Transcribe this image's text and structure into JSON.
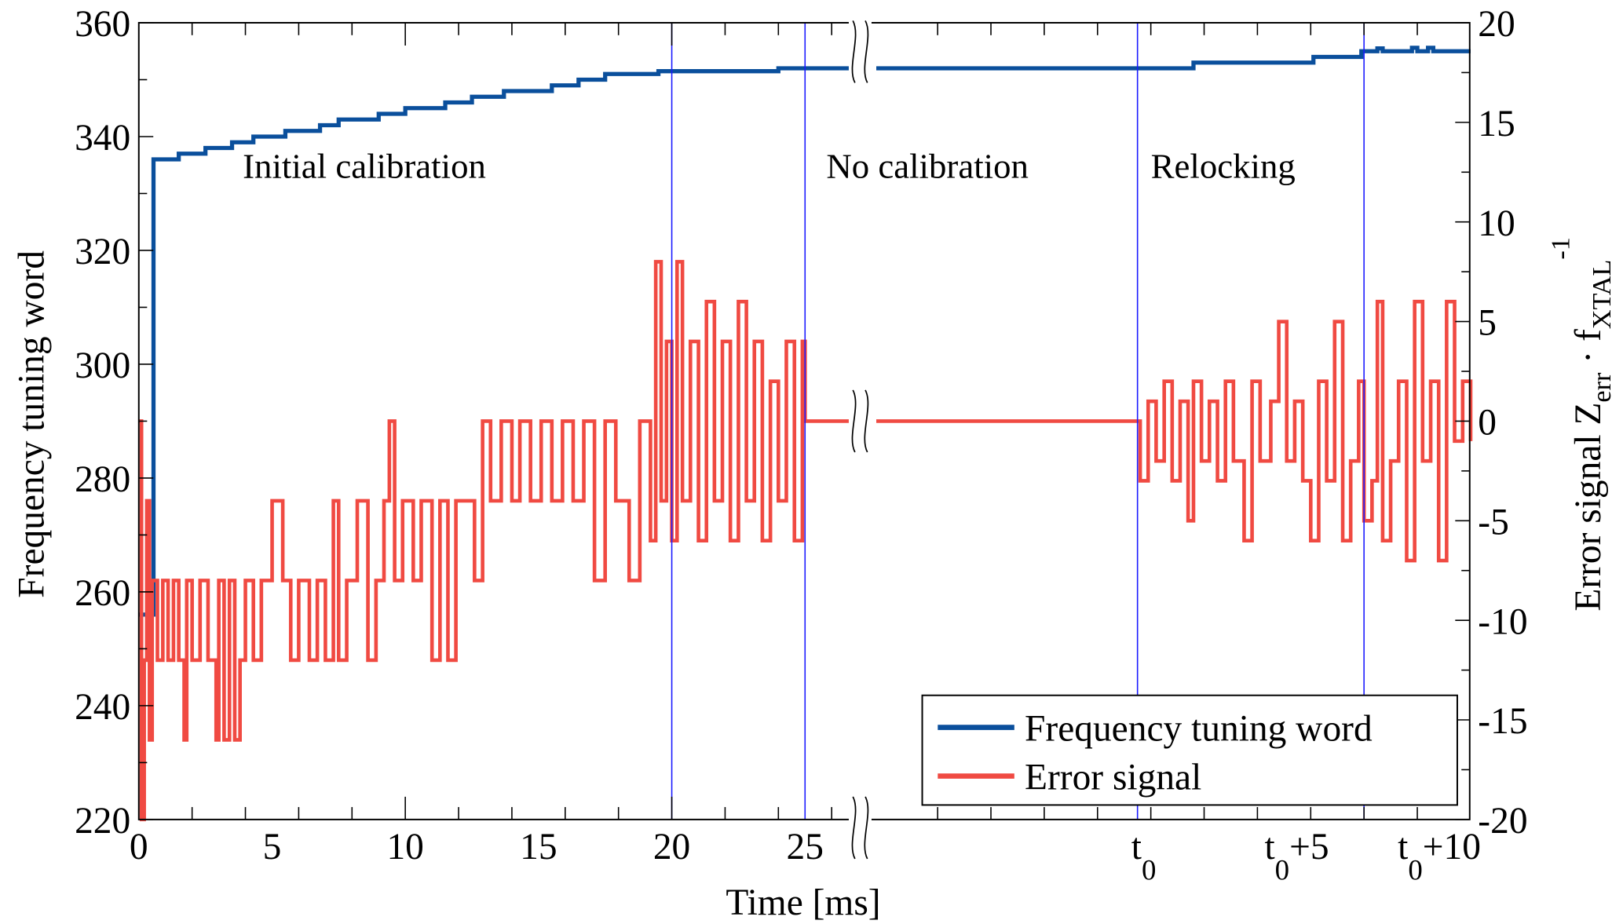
{
  "chart_data": {
    "type": "line",
    "xlabel": "Time [ms]",
    "ylabel_left": "Frequency tuning word",
    "ylabel_right_parts": [
      "Error signal Z",
      "err",
      " · f",
      "XTAL",
      "-1"
    ],
    "ylim_left": [
      220,
      360
    ],
    "ylim_right": [
      -20,
      20
    ],
    "yticks_left": [
      "220",
      "240",
      "260",
      "280",
      "300",
      "320",
      "340",
      "360"
    ],
    "yticks_right": [
      "-20",
      "-15",
      "-10",
      "-5",
      "0",
      "5",
      "10",
      "15",
      "20"
    ],
    "x_segments": [
      {
        "range": [
          0,
          27
        ],
        "tick_labels": [
          {
            "t": 0,
            "label": "0"
          },
          {
            "t": 5,
            "label": "5"
          },
          {
            "t": 10,
            "label": "10"
          },
          {
            "t": 15,
            "label": "15"
          },
          {
            "t": 20,
            "label": "20"
          },
          {
            "t": 25,
            "label": "25"
          }
        ]
      },
      {
        "range": [
          -9.8,
          12.5
        ],
        "reference": "t0",
        "tick_labels": [
          {
            "t": 0,
            "base": "t",
            "sub": "0",
            "suffix": ""
          },
          {
            "t": 5,
            "base": "t",
            "sub": "0",
            "suffix": "+5"
          },
          {
            "t": 10,
            "base": "t",
            "sub": "0",
            "suffix": "+10"
          }
        ]
      }
    ],
    "axis_break": "between segments",
    "grid": false,
    "legend": "bottom-right",
    "vertical_markers": [
      {
        "segment": 0,
        "t": 20
      },
      {
        "segment": 0,
        "t": 25
      },
      {
        "segment": 1,
        "t": 0
      },
      {
        "segment": 1,
        "t": 8.5
      }
    ],
    "marker_color": "#1a1aff",
    "annotations": [
      {
        "text": "Initial calibration",
        "segment": 0,
        "t": 3.9
      },
      {
        "text": "No calibration",
        "segment": 0,
        "t": 25.8
      },
      {
        "text": "Relocking",
        "segment": 1,
        "t": 0.5
      }
    ],
    "series": [
      {
        "name": "Frequency tuning word",
        "axis": "left",
        "color": "#0a4f9c",
        "segments": [
          [
            [
              0,
              256
            ],
            [
              0.45,
              256
            ],
            [
              0.55,
              336
            ],
            [
              1.5,
              337
            ],
            [
              2.5,
              338
            ],
            [
              3.5,
              339
            ],
            [
              4.3,
              340
            ],
            [
              5.5,
              341
            ],
            [
              6.8,
              342
            ],
            [
              7.5,
              343
            ],
            [
              9,
              344
            ],
            [
              10,
              345
            ],
            [
              11.5,
              346
            ],
            [
              12.5,
              347
            ],
            [
              13.7,
              348
            ],
            [
              15.5,
              349
            ],
            [
              16.5,
              350
            ],
            [
              17.5,
              351
            ],
            [
              19.5,
              351.5
            ],
            [
              24,
              352
            ],
            [
              27,
              352
            ]
          ],
          [
            [
              -9.8,
              352
            ],
            [
              2,
              352
            ],
            [
              2.1,
              353
            ],
            [
              6.5,
              353
            ],
            [
              6.6,
              354
            ],
            [
              8.3,
              354
            ],
            [
              8.4,
              355
            ],
            [
              9,
              355.5
            ],
            [
              9.2,
              355
            ],
            [
              10.3,
              355.6
            ],
            [
              10.5,
              355
            ],
            [
              10.9,
              355.6
            ],
            [
              11.1,
              355
            ],
            [
              12.5,
              355
            ]
          ]
        ]
      },
      {
        "name": "Error signal",
        "axis": "right",
        "color": "#f04a42",
        "segments": [
          [
            [
              0,
              0
            ],
            [
              0.1,
              -20
            ],
            [
              0.2,
              -12
            ],
            [
              0.3,
              -4
            ],
            [
              0.4,
              -16
            ],
            [
              0.5,
              -8
            ],
            [
              0.7,
              -12
            ],
            [
              0.9,
              -8
            ],
            [
              1.1,
              -12
            ],
            [
              1.3,
              -8
            ],
            [
              1.5,
              -12
            ],
            [
              1.7,
              -16
            ],
            [
              1.8,
              -8
            ],
            [
              2.0,
              -12
            ],
            [
              2.3,
              -8
            ],
            [
              2.6,
              -12
            ],
            [
              2.9,
              -16
            ],
            [
              3.0,
              -8
            ],
            [
              3.2,
              -16
            ],
            [
              3.4,
              -8
            ],
            [
              3.6,
              -16
            ],
            [
              3.8,
              -12
            ],
            [
              4.0,
              -8
            ],
            [
              4.3,
              -12
            ],
            [
              4.6,
              -8
            ],
            [
              5.0,
              -4
            ],
            [
              5.4,
              -8
            ],
            [
              5.7,
              -12
            ],
            [
              6.0,
              -8
            ],
            [
              6.4,
              -12
            ],
            [
              6.7,
              -8
            ],
            [
              7.0,
              -12
            ],
            [
              7.3,
              -4
            ],
            [
              7.5,
              -12
            ],
            [
              7.8,
              -8
            ],
            [
              8.2,
              -4
            ],
            [
              8.6,
              -12
            ],
            [
              8.9,
              -8
            ],
            [
              9.2,
              -4
            ],
            [
              9.4,
              0
            ],
            [
              9.6,
              -8
            ],
            [
              9.9,
              -4
            ],
            [
              10.3,
              -8
            ],
            [
              10.6,
              -4
            ],
            [
              11.0,
              -12
            ],
            [
              11.3,
              -4
            ],
            [
              11.6,
              -12
            ],
            [
              11.9,
              -4
            ],
            [
              12.3,
              -4
            ],
            [
              12.6,
              -8
            ],
            [
              12.9,
              0
            ],
            [
              13.2,
              -4
            ],
            [
              13.6,
              0
            ],
            [
              14.0,
              -4
            ],
            [
              14.3,
              0
            ],
            [
              14.7,
              -4
            ],
            [
              15.1,
              0
            ],
            [
              15.5,
              -4
            ],
            [
              15.9,
              0
            ],
            [
              16.3,
              -4
            ],
            [
              16.7,
              0
            ],
            [
              17.1,
              -8
            ],
            [
              17.5,
              0
            ],
            [
              17.9,
              -4
            ],
            [
              18.4,
              -8
            ],
            [
              18.8,
              0
            ],
            [
              19.2,
              -6
            ],
            [
              19.4,
              8
            ],
            [
              19.6,
              -4
            ],
            [
              19.8,
              4
            ],
            [
              20.0,
              -6
            ],
            [
              20.2,
              8
            ],
            [
              20.4,
              -4
            ],
            [
              20.7,
              4
            ],
            [
              21.0,
              -6
            ],
            [
              21.3,
              6
            ],
            [
              21.6,
              -4
            ],
            [
              21.9,
              4
            ],
            [
              22.2,
              -6
            ],
            [
              22.5,
              6
            ],
            [
              22.8,
              -4
            ],
            [
              23.1,
              4
            ],
            [
              23.4,
              -6
            ],
            [
              23.7,
              2
            ],
            [
              24.0,
              -4
            ],
            [
              24.3,
              4
            ],
            [
              24.6,
              -6
            ],
            [
              24.9,
              4
            ],
            [
              25.0,
              0
            ],
            [
              27,
              0
            ]
          ],
          [
            [
              -9.8,
              0
            ],
            [
              0,
              0
            ],
            [
              0.1,
              -3
            ],
            [
              0.4,
              1
            ],
            [
              0.7,
              -2
            ],
            [
              1.0,
              2
            ],
            [
              1.3,
              -3
            ],
            [
              1.6,
              1
            ],
            [
              1.9,
              -5
            ],
            [
              2.1,
              2
            ],
            [
              2.4,
              -2
            ],
            [
              2.7,
              1
            ],
            [
              3.0,
              -3
            ],
            [
              3.3,
              2
            ],
            [
              3.6,
              -2
            ],
            [
              4.0,
              -6
            ],
            [
              4.3,
              2
            ],
            [
              4.6,
              -2
            ],
            [
              5.0,
              1
            ],
            [
              5.3,
              5
            ],
            [
              5.6,
              -2
            ],
            [
              5.9,
              1
            ],
            [
              6.2,
              -3
            ],
            [
              6.5,
              -6
            ],
            [
              6.8,
              2
            ],
            [
              7.1,
              -3
            ],
            [
              7.4,
              5
            ],
            [
              7.7,
              -6
            ],
            [
              8.0,
              -2
            ],
            [
              8.3,
              2
            ],
            [
              8.5,
              -5
            ],
            [
              8.8,
              -3
            ],
            [
              9.0,
              6
            ],
            [
              9.2,
              -6
            ],
            [
              9.5,
              -2
            ],
            [
              9.8,
              2
            ],
            [
              10.1,
              -7
            ],
            [
              10.4,
              6
            ],
            [
              10.7,
              -2
            ],
            [
              11.0,
              2
            ],
            [
              11.3,
              -7
            ],
            [
              11.6,
              6
            ],
            [
              11.9,
              -1
            ],
            [
              12.2,
              2
            ],
            [
              12.5,
              -1
            ]
          ]
        ]
      }
    ]
  }
}
